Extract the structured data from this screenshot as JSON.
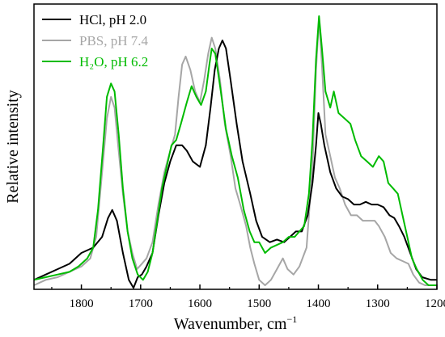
{
  "chart_data": {
    "type": "line",
    "xlabel": "Wavenumber, cm",
    "xlabel_sup": "−1",
    "ylabel": "Relative intensity",
    "xlim": [
      1880,
      1200
    ],
    "ylim": [
      0,
      1
    ],
    "x_reversed": true,
    "x_ticks": [
      1800,
      1700,
      1600,
      1500,
      1400,
      1300,
      1200
    ],
    "y_ticks_shown": false,
    "grid": false,
    "legend_position": "top-left",
    "series": [
      {
        "name": "HCl,  pH 2.0",
        "color": "#000000",
        "points": [
          [
            1880,
            0.02
          ],
          [
            1860,
            0.04
          ],
          [
            1840,
            0.06
          ],
          [
            1820,
            0.08
          ],
          [
            1800,
            0.12
          ],
          [
            1780,
            0.14
          ],
          [
            1765,
            0.18
          ],
          [
            1755,
            0.25
          ],
          [
            1748,
            0.28
          ],
          [
            1740,
            0.24
          ],
          [
            1730,
            0.12
          ],
          [
            1720,
            0.02
          ],
          [
            1712,
            -0.01
          ],
          [
            1705,
            0.03
          ],
          [
            1698,
            0.04
          ],
          [
            1690,
            0.07
          ],
          [
            1680,
            0.12
          ],
          [
            1670,
            0.26
          ],
          [
            1660,
            0.38
          ],
          [
            1650,
            0.46
          ],
          [
            1640,
            0.52
          ],
          [
            1630,
            0.52
          ],
          [
            1622,
            0.5
          ],
          [
            1612,
            0.46
          ],
          [
            1600,
            0.44
          ],
          [
            1590,
            0.52
          ],
          [
            1582,
            0.66
          ],
          [
            1575,
            0.8
          ],
          [
            1568,
            0.88
          ],
          [
            1562,
            0.91
          ],
          [
            1556,
            0.88
          ],
          [
            1548,
            0.76
          ],
          [
            1538,
            0.6
          ],
          [
            1528,
            0.46
          ],
          [
            1515,
            0.34
          ],
          [
            1505,
            0.24
          ],
          [
            1495,
            0.18
          ],
          [
            1482,
            0.16
          ],
          [
            1470,
            0.17
          ],
          [
            1458,
            0.16
          ],
          [
            1448,
            0.18
          ],
          [
            1438,
            0.2
          ],
          [
            1428,
            0.2
          ],
          [
            1418,
            0.26
          ],
          [
            1410,
            0.38
          ],
          [
            1404,
            0.52
          ],
          [
            1400,
            0.64
          ],
          [
            1396,
            0.6
          ],
          [
            1390,
            0.52
          ],
          [
            1380,
            0.42
          ],
          [
            1370,
            0.36
          ],
          [
            1360,
            0.33
          ],
          [
            1350,
            0.32
          ],
          [
            1340,
            0.3
          ],
          [
            1330,
            0.3
          ],
          [
            1320,
            0.31
          ],
          [
            1310,
            0.3
          ],
          [
            1300,
            0.3
          ],
          [
            1290,
            0.29
          ],
          [
            1280,
            0.26
          ],
          [
            1272,
            0.25
          ],
          [
            1264,
            0.22
          ],
          [
            1255,
            0.18
          ],
          [
            1245,
            0.12
          ],
          [
            1235,
            0.06
          ],
          [
            1225,
            0.03
          ],
          [
            1210,
            0.02
          ],
          [
            1200,
            0.02
          ]
        ]
      },
      {
        "name": "PBS,  pH 7.4",
        "color": "#a6a6a6",
        "points": [
          [
            1880,
            0.0
          ],
          [
            1860,
            0.02
          ],
          [
            1840,
            0.03
          ],
          [
            1820,
            0.05
          ],
          [
            1800,
            0.07
          ],
          [
            1785,
            0.1
          ],
          [
            1775,
            0.18
          ],
          [
            1765,
            0.42
          ],
          [
            1757,
            0.62
          ],
          [
            1750,
            0.7
          ],
          [
            1744,
            0.66
          ],
          [
            1738,
            0.52
          ],
          [
            1730,
            0.34
          ],
          [
            1722,
            0.2
          ],
          [
            1714,
            0.12
          ],
          [
            1706,
            0.06
          ],
          [
            1698,
            0.08
          ],
          [
            1690,
            0.1
          ],
          [
            1680,
            0.16
          ],
          [
            1670,
            0.3
          ],
          [
            1660,
            0.42
          ],
          [
            1650,
            0.5
          ],
          [
            1642,
            0.56
          ],
          [
            1636,
            0.7
          ],
          [
            1630,
            0.82
          ],
          [
            1624,
            0.85
          ],
          [
            1616,
            0.8
          ],
          [
            1608,
            0.72
          ],
          [
            1600,
            0.68
          ],
          [
            1593,
            0.76
          ],
          [
            1586,
            0.86
          ],
          [
            1580,
            0.92
          ],
          [
            1574,
            0.88
          ],
          [
            1566,
            0.76
          ],
          [
            1558,
            0.6
          ],
          [
            1548,
            0.48
          ],
          [
            1540,
            0.36
          ],
          [
            1532,
            0.3
          ],
          [
            1522,
            0.22
          ],
          [
            1515,
            0.14
          ],
          [
            1508,
            0.08
          ],
          [
            1500,
            0.02
          ],
          [
            1490,
            0.0
          ],
          [
            1480,
            0.02
          ],
          [
            1470,
            0.06
          ],
          [
            1460,
            0.1
          ],
          [
            1452,
            0.06
          ],
          [
            1442,
            0.04
          ],
          [
            1432,
            0.07
          ],
          [
            1420,
            0.14
          ],
          [
            1410,
            0.44
          ],
          [
            1404,
            0.8
          ],
          [
            1399,
            0.99
          ],
          [
            1394,
            0.82
          ],
          [
            1388,
            0.56
          ],
          [
            1380,
            0.48
          ],
          [
            1372,
            0.4
          ],
          [
            1364,
            0.36
          ],
          [
            1355,
            0.3
          ],
          [
            1345,
            0.26
          ],
          [
            1335,
            0.26
          ],
          [
            1325,
            0.24
          ],
          [
            1315,
            0.24
          ],
          [
            1305,
            0.24
          ],
          [
            1298,
            0.22
          ],
          [
            1288,
            0.18
          ],
          [
            1278,
            0.12
          ],
          [
            1268,
            0.1
          ],
          [
            1258,
            0.09
          ],
          [
            1248,
            0.08
          ],
          [
            1240,
            0.04
          ],
          [
            1230,
            0.01
          ],
          [
            1220,
            0.0
          ],
          [
            1200,
            0.0
          ]
        ]
      },
      {
        "name": "H₂O, pH 6.2",
        "color": "#00bb00",
        "points": [
          [
            1880,
            0.02
          ],
          [
            1860,
            0.03
          ],
          [
            1840,
            0.04
          ],
          [
            1820,
            0.05
          ],
          [
            1805,
            0.07
          ],
          [
            1790,
            0.1
          ],
          [
            1780,
            0.14
          ],
          [
            1772,
            0.28
          ],
          [
            1764,
            0.5
          ],
          [
            1757,
            0.7
          ],
          [
            1750,
            0.75
          ],
          [
            1744,
            0.72
          ],
          [
            1737,
            0.56
          ],
          [
            1730,
            0.36
          ],
          [
            1722,
            0.2
          ],
          [
            1714,
            0.1
          ],
          [
            1705,
            0.04
          ],
          [
            1696,
            0.02
          ],
          [
            1688,
            0.05
          ],
          [
            1680,
            0.12
          ],
          [
            1672,
            0.24
          ],
          [
            1664,
            0.36
          ],
          [
            1656,
            0.44
          ],
          [
            1648,
            0.52
          ],
          [
            1640,
            0.54
          ],
          [
            1632,
            0.6
          ],
          [
            1622,
            0.68
          ],
          [
            1614,
            0.74
          ],
          [
            1606,
            0.7
          ],
          [
            1598,
            0.67
          ],
          [
            1590,
            0.72
          ],
          [
            1584,
            0.82
          ],
          [
            1580,
            0.88
          ],
          [
            1574,
            0.86
          ],
          [
            1566,
            0.74
          ],
          [
            1556,
            0.58
          ],
          [
            1546,
            0.48
          ],
          [
            1536,
            0.4
          ],
          [
            1526,
            0.28
          ],
          [
            1516,
            0.2
          ],
          [
            1508,
            0.16
          ],
          [
            1500,
            0.16
          ],
          [
            1490,
            0.12
          ],
          [
            1480,
            0.14
          ],
          [
            1470,
            0.15
          ],
          [
            1460,
            0.16
          ],
          [
            1450,
            0.18
          ],
          [
            1440,
            0.18
          ],
          [
            1432,
            0.2
          ],
          [
            1424,
            0.22
          ],
          [
            1416,
            0.34
          ],
          [
            1410,
            0.54
          ],
          [
            1404,
            0.84
          ],
          [
            1399,
            1.0
          ],
          [
            1394,
            0.88
          ],
          [
            1388,
            0.72
          ],
          [
            1380,
            0.66
          ],
          [
            1374,
            0.72
          ],
          [
            1366,
            0.64
          ],
          [
            1356,
            0.62
          ],
          [
            1346,
            0.6
          ],
          [
            1338,
            0.54
          ],
          [
            1328,
            0.48
          ],
          [
            1318,
            0.46
          ],
          [
            1308,
            0.44
          ],
          [
            1298,
            0.48
          ],
          [
            1290,
            0.46
          ],
          [
            1282,
            0.38
          ],
          [
            1274,
            0.36
          ],
          [
            1266,
            0.34
          ],
          [
            1258,
            0.26
          ],
          [
            1250,
            0.18
          ],
          [
            1242,
            0.1
          ],
          [
            1234,
            0.06
          ],
          [
            1224,
            0.02
          ],
          [
            1214,
            0.0
          ],
          [
            1200,
            0.0
          ]
        ]
      }
    ]
  }
}
